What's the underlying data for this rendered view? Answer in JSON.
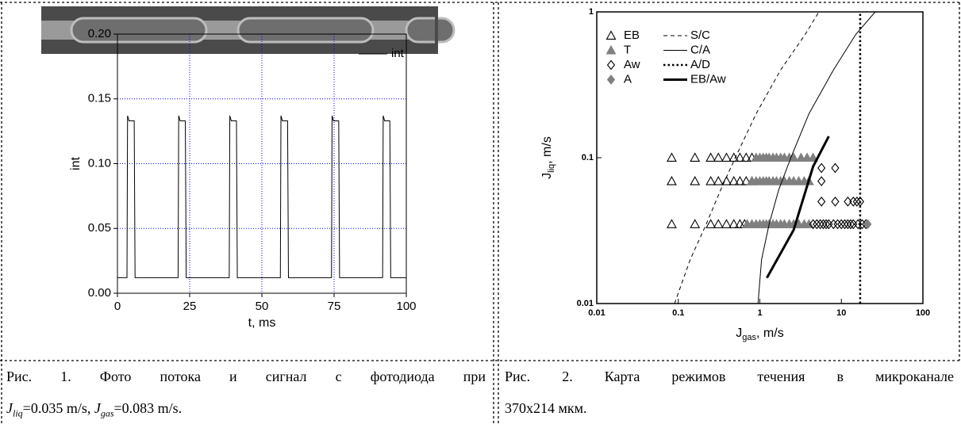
{
  "chart_data": [
    {
      "type": "line",
      "x_label": "t, ms",
      "y_label": "int",
      "xlim": [
        0,
        100
      ],
      "ylim": [
        0,
        0.2
      ],
      "xticks": [
        0,
        25,
        50,
        75,
        100
      ],
      "yticks": [
        {
          "value": 0,
          "label": "0.00"
        },
        {
          "value": 0.05,
          "label": "0.05"
        },
        {
          "value": 0.1,
          "label": "0.10"
        },
        {
          "value": 0.15,
          "label": "0.15"
        },
        {
          "value": 0.2,
          "label": "0.20"
        }
      ],
      "grid": true,
      "legend": "upper right",
      "series": [
        {
          "name": "int",
          "color": "#000000",
          "line_style": "solid",
          "x": [
            0,
            3.3,
            3.5,
            4.0,
            5.8,
            6.1,
            21.0,
            21.2,
            21.7,
            23.5,
            23.8,
            38.7,
            38.9,
            39.4,
            41.2,
            41.5,
            56.4,
            56.6,
            57.1,
            58.9,
            59.2,
            74.1,
            74.3,
            74.8,
            76.6,
            76.9,
            91.8,
            92.0,
            92.5,
            94.3,
            94.6,
            100
          ],
          "values": [
            0.012,
            0.012,
            0.137,
            0.133,
            0.133,
            0.012,
            0.012,
            0.137,
            0.133,
            0.133,
            0.012,
            0.012,
            0.137,
            0.133,
            0.133,
            0.012,
            0.012,
            0.137,
            0.133,
            0.133,
            0.012,
            0.012,
            0.137,
            0.133,
            0.133,
            0.012,
            0.012,
            0.137,
            0.133,
            0.133,
            0.012,
            0.012
          ]
        }
      ]
    },
    {
      "type": "scatter",
      "xscale": "log",
      "yscale": "log",
      "x_label": {
        "symbol": "J",
        "sub": "gas",
        "unit": ", m/s"
      },
      "y_label": {
        "symbol": "J",
        "sub": "liq",
        "unit": ", m/s"
      },
      "xlim": [
        0.01,
        100
      ],
      "ylim": [
        0.01,
        1
      ],
      "xticks": [
        0.01,
        0.1,
        1,
        10,
        100
      ],
      "yticks": [
        0.01,
        0.1,
        1
      ],
      "grid": false,
      "legend": "upper left",
      "series": [
        {
          "name": "EB",
          "color": "#000000",
          "marker": "triangle-open",
          "x": [
            0.083,
            0.16,
            0.25,
            0.31,
            0.39,
            0.48,
            0.57,
            0.68,
            0.8,
            0.083,
            0.16,
            0.25,
            0.31,
            0.39,
            0.48,
            0.57,
            0.68,
            0.8,
            0.083,
            0.16,
            0.25,
            0.31,
            0.39,
            0.48,
            0.57,
            0.65
          ],
          "values": [
            0.1,
            0.1,
            0.1,
            0.1,
            0.1,
            0.1,
            0.1,
            0.1,
            0.1,
            0.069,
            0.069,
            0.069,
            0.069,
            0.069,
            0.069,
            0.069,
            0.069,
            0.069,
            0.035,
            0.035,
            0.035,
            0.035,
            0.035,
            0.035,
            0.035,
            0.035
          ]
        },
        {
          "name": "T",
          "color": "#808080",
          "marker": "triangle",
          "x": [
            0.9,
            1.0,
            1.1,
            1.2,
            1.3,
            1.45,
            1.6,
            1.8,
            2.0,
            2.3,
            2.6,
            3.2,
            3.8,
            4.5,
            0.8,
            0.9,
            1.0,
            1.1,
            1.2,
            1.3,
            1.45,
            1.6,
            1.8,
            2.0,
            2.3,
            2.6,
            3.0,
            3.5,
            4.0,
            0.7,
            0.8,
            0.9,
            1.0,
            1.1,
            1.2,
            1.3,
            1.45,
            1.6,
            1.8,
            2.0,
            2.3,
            2.6,
            3.0,
            3.5,
            4.0
          ],
          "values": [
            0.1,
            0.1,
            0.1,
            0.1,
            0.1,
            0.1,
            0.1,
            0.1,
            0.1,
            0.1,
            0.1,
            0.1,
            0.1,
            0.1,
            0.069,
            0.069,
            0.069,
            0.069,
            0.069,
            0.069,
            0.069,
            0.069,
            0.069,
            0.069,
            0.069,
            0.069,
            0.069,
            0.069,
            0.069,
            0.035,
            0.035,
            0.035,
            0.035,
            0.035,
            0.035,
            0.035,
            0.035,
            0.035,
            0.035,
            0.035,
            0.035,
            0.035,
            0.035,
            0.035,
            0.035
          ]
        },
        {
          "name": "Aw",
          "color": "#000000",
          "marker": "diamond-open",
          "x": [
            5.7,
            8.4,
            5.7,
            5.7,
            8.4,
            12,
            14,
            15.5,
            17,
            4.5,
            5,
            5.5,
            6,
            6.5,
            7,
            8,
            9,
            10,
            11,
            12,
            13,
            14,
            16,
            18,
            20
          ],
          "values": [
            0.085,
            0.085,
            0.069,
            0.05,
            0.05,
            0.05,
            0.05,
            0.05,
            0.05,
            0.035,
            0.035,
            0.035,
            0.035,
            0.035,
            0.035,
            0.035,
            0.035,
            0.035,
            0.035,
            0.035,
            0.035,
            0.035,
            0.035,
            0.035,
            0.035
          ]
        },
        {
          "name": "A",
          "color": "#808080",
          "marker": "diamond",
          "x": [
            21
          ],
          "values": [
            0.035
          ]
        },
        {
          "name": "S/C",
          "color": "#000000",
          "line_style": "dashed",
          "line_width": 1,
          "x": [
            0.09,
            0.14,
            0.22,
            0.33,
            0.5,
            0.9,
            1.8,
            3.6,
            5.3
          ],
          "values": [
            0.01,
            0.02,
            0.035,
            0.06,
            0.1,
            0.2,
            0.4,
            0.7,
            1
          ]
        },
        {
          "name": "C/A",
          "color": "#000000",
          "line_style": "solid",
          "line_width": 1,
          "x": [
            0.95,
            1.05,
            1.3,
            1.7,
            2.4,
            4,
            8,
            15,
            26
          ],
          "values": [
            0.01,
            0.02,
            0.035,
            0.06,
            0.1,
            0.2,
            0.4,
            0.7,
            1
          ]
        },
        {
          "name": "A/D",
          "color": "#000000",
          "line_style": "dotted",
          "line_width": 2.5,
          "x": [
            17,
            17
          ],
          "values": [
            0.01,
            1
          ]
        },
        {
          "name": "EB/Aw",
          "color": "#000000",
          "line_style": "solid",
          "line_width": 3,
          "x": [
            1.22,
            2.6,
            4.5,
            7
          ],
          "values": [
            0.015,
            0.032,
            0.087,
            0.14
          ]
        }
      ]
    }
  ],
  "captions": [
    {
      "line1": "Рис. 1. Фото потока и сигнал с фотодиода при",
      "line2": [
        "J",
        "liq",
        "=0.035 m/s, ",
        "J",
        "gas",
        "=0.083 m/s."
      ]
    },
    {
      "line1": "Рис. 2. Карта режимов течения в микроканале",
      "line2": "370x214 мкм."
    }
  ]
}
